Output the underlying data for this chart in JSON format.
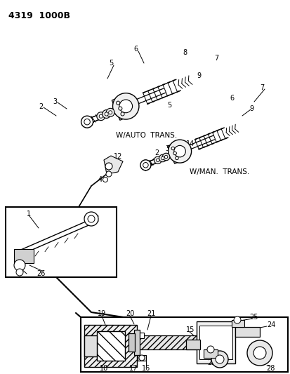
{
  "title": "4319  1000B",
  "bg_color": "#ffffff",
  "text_color": "#111111",
  "fig_width": 4.14,
  "fig_height": 5.33,
  "dpi": 100
}
